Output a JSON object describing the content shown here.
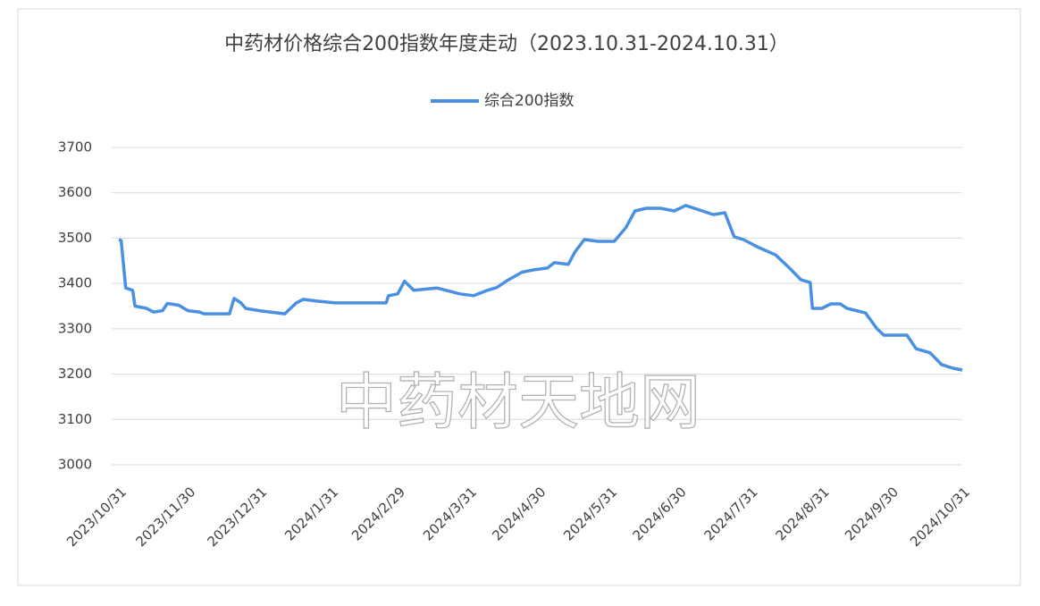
{
  "chart_data": {
    "type": "line",
    "title": "中药材价格综合200指数年度走动（2023.10.31-2024.10.31）",
    "annotation": "中药材天地网",
    "series": [
      {
        "name": "综合200指数",
        "color": "#4a90e2",
        "x": [
          "2023/10/31",
          "2023/11/1",
          "2023/11/3",
          "2023/11/6",
          "2023/11/7",
          "2023/11/12",
          "2023/11/15",
          "2023/11/19",
          "2023/11/21",
          "2023/11/26",
          "2023/11/30",
          "2023/12/5",
          "2023/12/7",
          "2023/12/18",
          "2023/12/20",
          "2023/12/23",
          "2023/12/25",
          "2023/12/31",
          "2024/1/11",
          "2024/1/16",
          "2024/1/19",
          "2024/1/25",
          "2024/2/2",
          "2024/2/19",
          "2024/2/24",
          "2024/2/25",
          "2024/2/29",
          "2024/3/3",
          "2024/3/7",
          "2024/3/17",
          "2024/3/21",
          "2024/3/27",
          "2024/4/2",
          "2024/4/8",
          "2024/4/12",
          "2024/4/17",
          "2024/4/23",
          "2024/4/28",
          "2024/5/4",
          "2024/5/7",
          "2024/5/13",
          "2024/5/16",
          "2024/5/20",
          "2024/5/26",
          "2024/6/2",
          "2024/6/7",
          "2024/6/11",
          "2024/6/16",
          "2024/6/22",
          "2024/6/28",
          "2024/7/3",
          "2024/7/9",
          "2024/7/15",
          "2024/7/20",
          "2024/7/24",
          "2024/7/28",
          "2024/8/3",
          "2024/8/11",
          "2024/8/17",
          "2024/8/22",
          "2024/8/26",
          "2024/8/27",
          "2024/8/31",
          "2024/9/4",
          "2024/9/8",
          "2024/9/11",
          "2024/9/19",
          "2024/9/24",
          "2024/9/27",
          "2024/10/7",
          "2024/10/11",
          "2024/10/17",
          "2024/10/22",
          "2024/10/27",
          "2024/10/31"
        ],
        "values": [
          3497,
          3495,
          3390,
          3385,
          3350,
          3345,
          3337,
          3340,
          3356,
          3352,
          3340,
          3337,
          3333,
          3333,
          3367,
          3357,
          3345,
          3340,
          3333,
          3357,
          3365,
          3361,
          3357,
          3357,
          3357,
          3373,
          3377,
          3405,
          3385,
          3390,
          3385,
          3377,
          3373,
          3385,
          3391,
          3408,
          3425,
          3430,
          3434,
          3446,
          3442,
          3470,
          3497,
          3493,
          3493,
          3523,
          3560,
          3566,
          3566,
          3560,
          3572,
          3562,
          3552,
          3556,
          3503,
          3497,
          3481,
          3463,
          3434,
          3408,
          3402,
          3345,
          3345,
          3355,
          3355,
          3345,
          3335,
          3300,
          3286,
          3286,
          3256,
          3247,
          3221,
          3213,
          3209
        ]
      }
    ],
    "xlim": [
      "2023/10/31",
      "2024/10/31"
    ],
    "xticks": [
      "2023/10/31",
      "2023/11/30",
      "2023/12/31",
      "2024/1/31",
      "2024/2/29",
      "2024/3/31",
      "2024/4/30",
      "2024/5/31",
      "2024/6/30",
      "2024/7/31",
      "2024/8/31",
      "2024/9/30",
      "2024/10/31"
    ],
    "ylim": [
      3000,
      3700
    ],
    "yticks": [
      3000,
      3100,
      3200,
      3300,
      3400,
      3500,
      3600,
      3700
    ],
    "grid": true
  }
}
